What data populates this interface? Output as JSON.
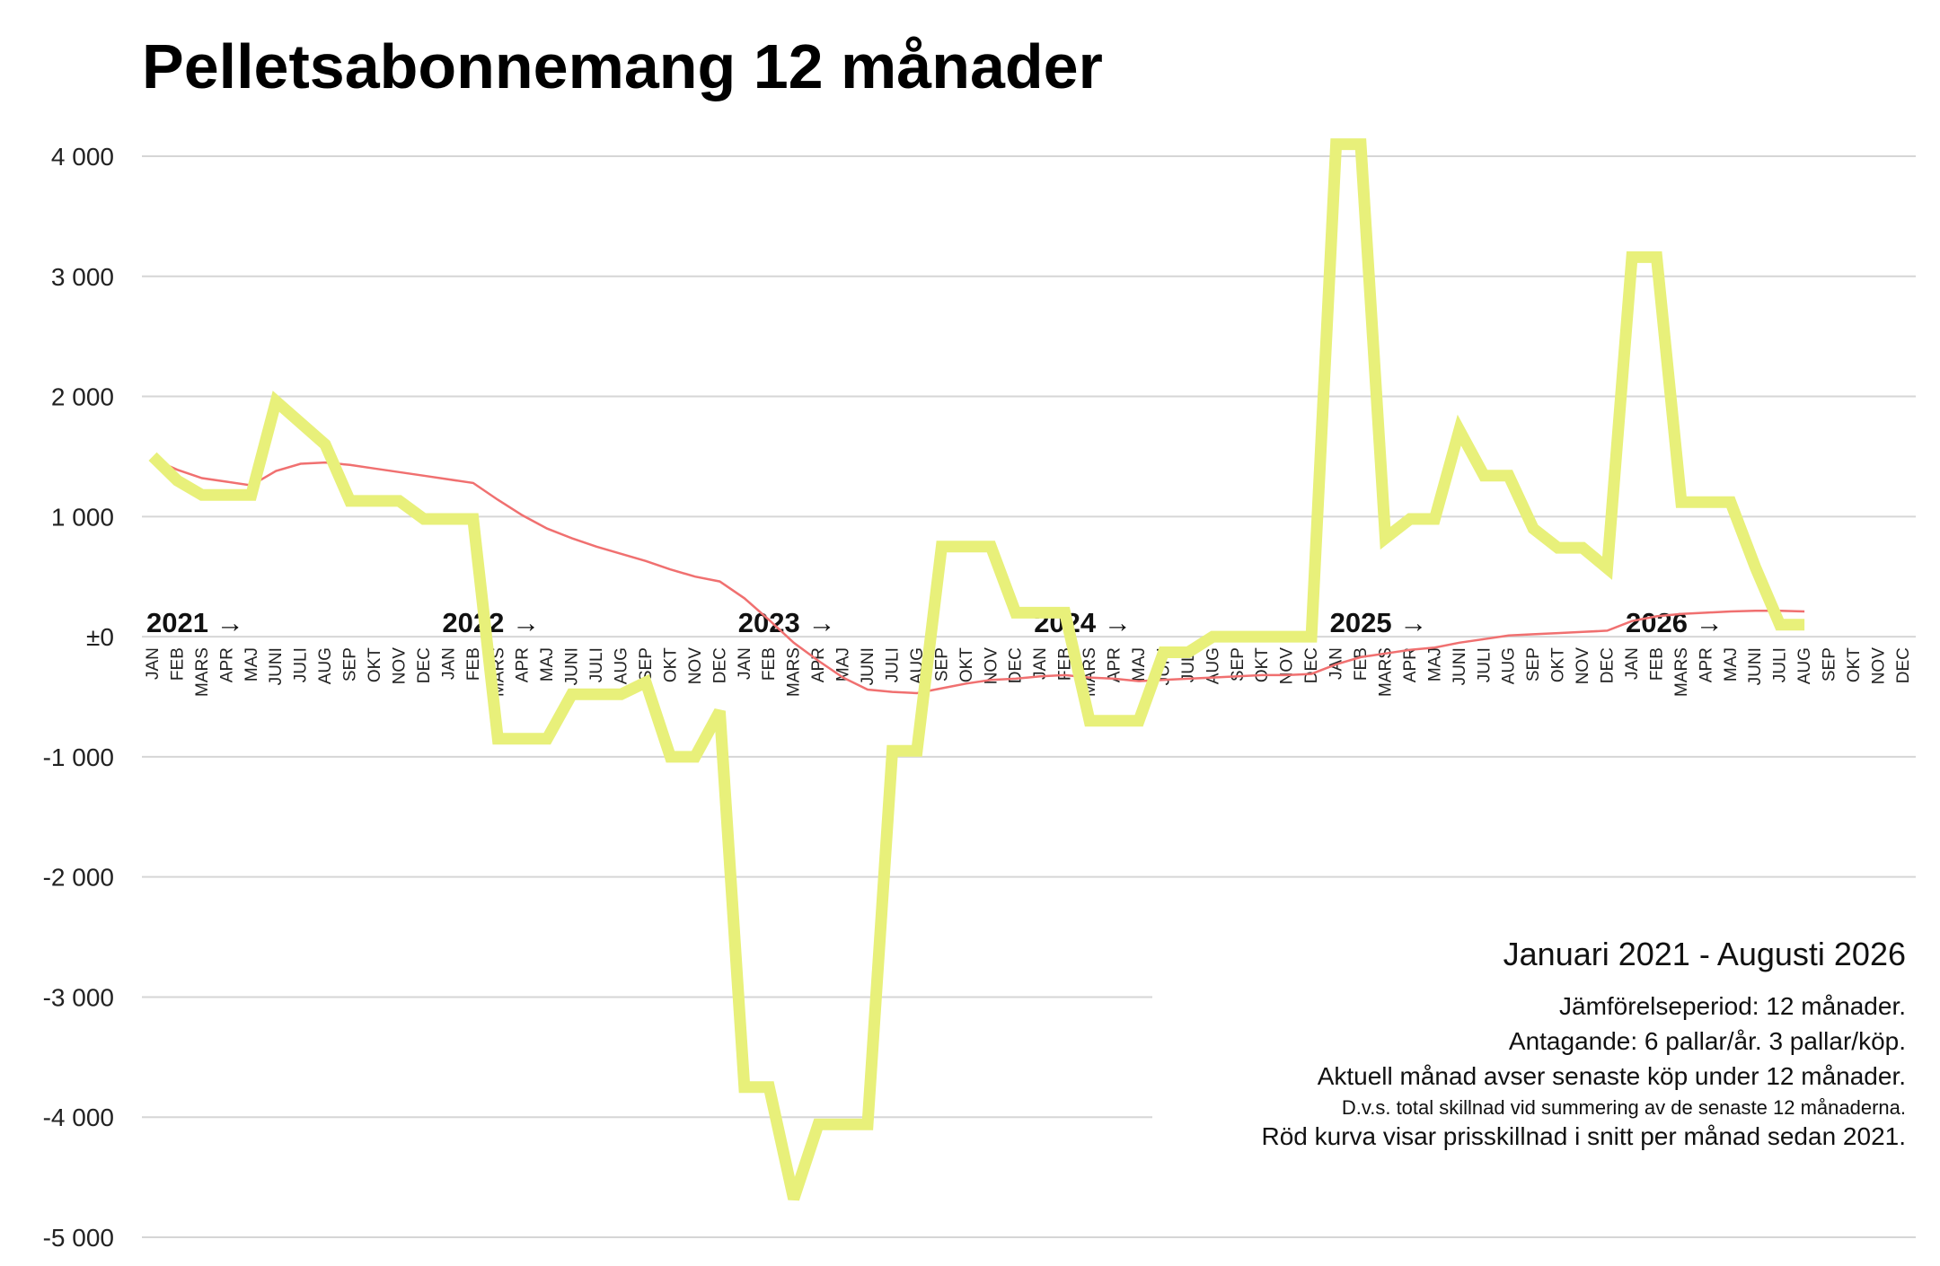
{
  "chart_data": {
    "type": "line",
    "title": "Pelletsabonnemang 12 månader",
    "xlabel": "",
    "ylabel": "",
    "ylim": [
      -5000,
      4000
    ],
    "y_tick_values": [
      4000,
      3000,
      2000,
      1000,
      0,
      -1000,
      -2000,
      -3000,
      -4000,
      -5000
    ],
    "y_tick_labels": [
      "4 000",
      "3 000",
      "2 000",
      "1 000",
      "±0",
      "-1 000",
      "-2 000",
      "-3 000",
      "-4 000",
      "-5 000"
    ],
    "grid": true,
    "month_labels": [
      "JAN",
      "FEB",
      "MARS",
      "APR",
      "MAJ",
      "JUNI",
      "JULI",
      "AUG",
      "SEP",
      "OKT",
      "NOV",
      "DEC"
    ],
    "years": [
      "2021 →",
      "2022 →",
      "2023 →",
      "2024 →",
      "2025 →",
      "2026 →"
    ],
    "series": [
      {
        "color": "#e8f07a",
        "values": [
          1500,
          1300,
          1180,
          1180,
          1180,
          1960,
          1780,
          1600,
          1130,
          1130,
          1130,
          980,
          980,
          980,
          -850,
          -850,
          -850,
          -480,
          -480,
          -480,
          -380,
          -1000,
          -1000,
          -620,
          -3750,
          -3750,
          -4680,
          -4060,
          -4060,
          -4060,
          -950,
          -950,
          750,
          750,
          750,
          200,
          200,
          200,
          -700,
          -700,
          -700,
          -130,
          -130,
          0,
          0,
          0,
          0,
          0,
          4100,
          4100,
          820,
          980,
          980,
          1720,
          1340,
          1340,
          900,
          740,
          740,
          570,
          3160,
          3160,
          1120,
          1120,
          1120,
          580,
          100,
          100
        ]
      },
      {
        "color": "#f07070",
        "values": [
          1480,
          1390,
          1320,
          1290,
          1260,
          1380,
          1440,
          1450,
          1430,
          1400,
          1370,
          1340,
          1310,
          1280,
          1140,
          1010,
          900,
          820,
          750,
          690,
          630,
          560,
          500,
          460,
          320,
          140,
          -50,
          -200,
          -340,
          -440,
          -460,
          -470,
          -430,
          -390,
          -360,
          -350,
          -330,
          -320,
          -340,
          -350,
          -370,
          -360,
          -350,
          -340,
          -330,
          -320,
          -320,
          -310,
          -230,
          -170,
          -140,
          -110,
          -90,
          -50,
          -20,
          10,
          20,
          30,
          40,
          50,
          130,
          170,
          190,
          200,
          210,
          215,
          215,
          210
        ]
      }
    ],
    "annotations": {
      "heading": "Januari 2021 - Augusti 2026",
      "lines": [
        "Jämförelseperiod: 12 månader.",
        "Antagande: 6 pallar/år. 3 pallar/köp.",
        "Aktuell månad avser senaste köp under 12 månader.",
        "D.v.s. total skillnad vid summering av de senaste 12 månaderna.",
        "Röd kurva visar prisskillnad i snitt per månad sedan 2021."
      ]
    }
  }
}
